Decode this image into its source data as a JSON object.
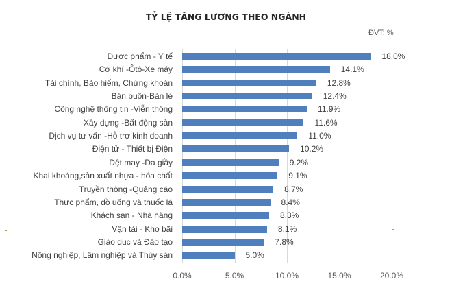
{
  "chart_data": {
    "type": "bar",
    "orientation": "horizontal",
    "title": "TỶ LỆ TĂNG LƯƠNG THEO NGÀNH",
    "unit_label": "ĐVT: %",
    "xlabel": "",
    "ylabel": "",
    "xlim": [
      0,
      20
    ],
    "x_ticks": [
      "0.0%",
      "5.0%",
      "10.0%",
      "15.0%",
      "20.0%"
    ],
    "grid": true,
    "legend": "none",
    "bar_color": "#4f7fbd",
    "categories": [
      "Dược phẩm   - Y tế",
      "Cơ khí  -Ôtô-Xe máy",
      "Tài chính, Bảo hiểm, Chứng khoán",
      "Bán buôn-Bán lẻ",
      "Công nghệ thông tin -Viễn thông",
      "Xây dựng  -Bất động sản",
      "Dịch vụ tư vấn  -Hỗ trợ kinh doanh",
      "Điện tử - Thiết bị Điện",
      "Dệt may -Da giầy",
      "Khai khoáng,sản xuất nhựa     - hóa chất",
      "Truyền thông -Quảng cáo",
      "Thực phẩm, đồ uống và thuốc lá",
      "Khách sạn   - Nhà hàng",
      "Vận tải  - Kho bãi",
      "Giáo dục và Đào tạo",
      "Nông nghiệp, Lâm nghiệp và Thủy sản"
    ],
    "values": [
      18.0,
      14.1,
      12.8,
      12.4,
      11.9,
      11.6,
      11.0,
      10.2,
      9.2,
      9.1,
      8.7,
      8.4,
      8.3,
      8.1,
      7.8,
      5.0
    ],
    "value_labels": [
      "18.0%",
      "14.1%",
      "12.8%",
      "12.4%",
      "11.9%",
      "11.6%",
      "11.0%",
      "10.2%",
      "9.2%",
      "9.1%",
      "8.7%",
      "8.4%",
      "8.3%",
      "8.1%",
      "7.8%",
      "5.0%"
    ]
  }
}
